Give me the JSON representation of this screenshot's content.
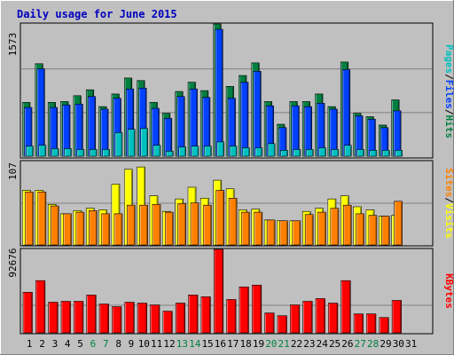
{
  "chart_data": {
    "type": "bar",
    "title": "Daily usage for June 2015",
    "days": [
      "1",
      "2",
      "3",
      "4",
      "5",
      "6",
      "7",
      "8",
      "9",
      "10",
      "11",
      "12",
      "13",
      "14",
      "15",
      "16",
      "17",
      "18",
      "19",
      "20",
      "21",
      "22",
      "23",
      "24",
      "25",
      "26",
      "27",
      "28",
      "29",
      "30",
      "31"
    ],
    "weekend_days": [
      "6",
      "7",
      "13",
      "14",
      "20",
      "21",
      "27",
      "28"
    ],
    "panels": [
      {
        "id": "usage",
        "axis_max_label": "1573",
        "ylim": [
          0,
          1573
        ],
        "right_labels": [
          "Pages",
          "/",
          "Files",
          "/",
          "Hits"
        ],
        "right_label_colors": [
          "#00c0c0",
          "#000000",
          "#0040ff",
          "#000000",
          "#008040"
        ],
        "series": [
          {
            "name": "Hits",
            "color": "#008040",
            "values": [
              640,
              1100,
              640,
              650,
              720,
              790,
              590,
              740,
              930,
              900,
              640,
              510,
              770,
              880,
              780,
              1573,
              830,
              960,
              1110,
              650,
              380,
              650,
              650,
              740,
              590,
              1120,
              510,
              470,
              370,
              670,
              0
            ]
          },
          {
            "name": "Files",
            "color": "#0040ff",
            "values": [
              580,
              1040,
              580,
              610,
              620,
              710,
              560,
              690,
              800,
              810,
              570,
              450,
              710,
              800,
              700,
              1510,
              690,
              880,
              1010,
              600,
              340,
              600,
              590,
              630,
              560,
              1030,
              480,
              440,
              340,
              540,
              0
            ]
          },
          {
            "name": "Pages",
            "color": "#00c0c0",
            "values": [
              120,
              130,
              90,
              90,
              80,
              80,
              80,
              280,
              320,
              330,
              130,
              60,
              110,
              120,
              120,
              170,
              120,
              100,
              100,
              150,
              70,
              80,
              80,
              100,
              80,
              130,
              80,
              70,
              70,
              70,
              0
            ]
          }
        ]
      },
      {
        "id": "visits",
        "axis_max_label": "107",
        "ylim": [
          0,
          107
        ],
        "right_labels": [
          "Sites",
          "/",
          "Visits"
        ],
        "right_label_colors": [
          "#ff8000",
          "#000000",
          "#ffff00"
        ],
        "series": [
          {
            "name": "Visits",
            "color": "#ffff00",
            "values": [
              70,
              70,
              52,
              40,
              44,
              47,
              45,
              78,
              97,
              100,
              63,
              43,
              59,
              74,
              60,
              83,
              72,
              45,
              46,
              32,
              31,
              31,
              43,
              47,
              59,
              63,
              49,
              45,
              37,
              38,
              0
            ]
          },
          {
            "name": "Sites",
            "color": "#ff8000",
            "values": [
              68,
              68,
              50,
              40,
              42,
              44,
              40,
              40,
              51,
              51,
              52,
              42,
              53,
              54,
              51,
              70,
              60,
              42,
              42,
              32,
              31,
              31,
              39,
              42,
              47,
              51,
              40,
              38,
              37,
              56,
              0
            ]
          }
        ]
      },
      {
        "id": "kbytes",
        "axis_max_label": "92676",
        "ylim": [
          0,
          92676
        ],
        "right_labels": [
          "KBytes"
        ],
        "right_label_colors": [
          "#ff0000"
        ],
        "series": [
          {
            "name": "KBytes",
            "color": "#ff0000",
            "values": [
              45000,
              58000,
              34000,
              35000,
              35000,
              42000,
              32000,
              29000,
              34000,
              33000,
              31000,
              24000,
              33000,
              42000,
              40000,
              92676,
              37000,
              51000,
              53000,
              22000,
              19000,
              31000,
              35000,
              38000,
              33000,
              58000,
              21000,
              21000,
              17000,
              36000,
              0
            ]
          }
        ]
      }
    ]
  }
}
